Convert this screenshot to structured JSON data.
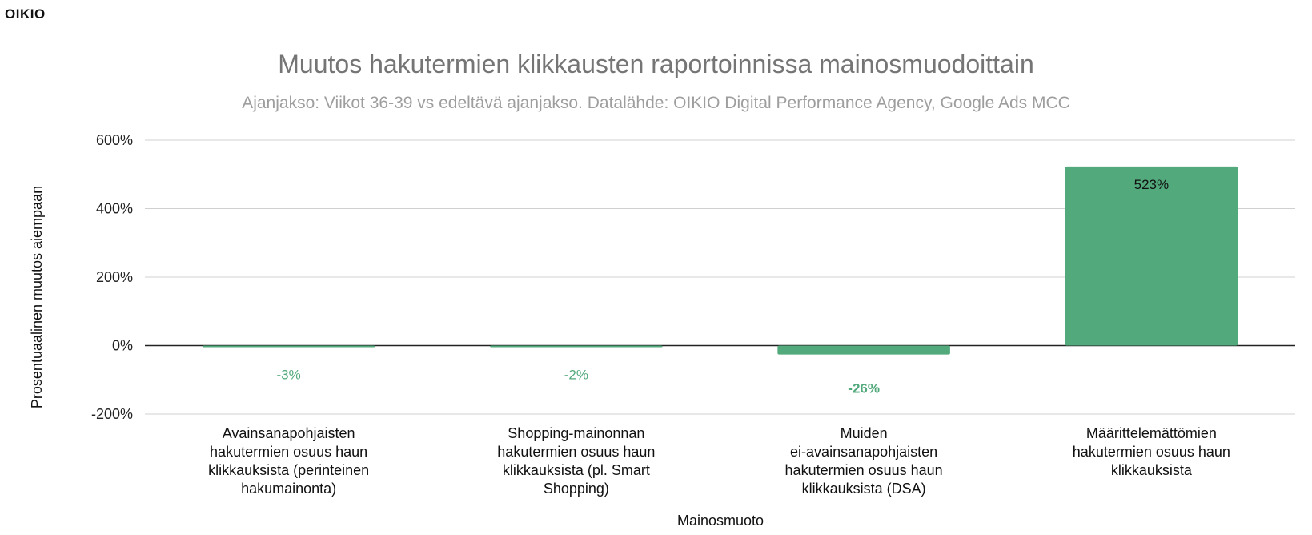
{
  "logo": "OIKIO",
  "chart_data": {
    "type": "bar",
    "title": "Muutos hakutermien klikkausten raportoinnissa mainosmuodoittain",
    "subtitle": "Ajanjakso: Viikot 36-39 vs edeltävä ajanjakso. Datalähde: OIKIO Digital Performance Agency, Google Ads MCC",
    "xlabel": "Mainosmuoto",
    "ylabel": "Prosentuaalinen muutos aiempaan",
    "ylim": [
      -200,
      600
    ],
    "yticks": [
      -200,
      0,
      200,
      400,
      600
    ],
    "ytick_labels": [
      "-200%",
      "0%",
      "200%",
      "400%",
      "600%"
    ],
    "grid": true,
    "bar_color": "#52a97c",
    "categories": [
      [
        "Avainsanapohjaisten",
        "hakutermien osuus haun",
        "klikkauksista (perinteinen",
        "hakumainonta)"
      ],
      [
        "Shopping-mainonnan",
        "hakutermien osuus haun",
        "klikkauksista (pl. Smart",
        "Shopping)"
      ],
      [
        "Muiden",
        "ei-avainsanapohjaisten",
        "hakutermien osuus haun",
        "klikkauksista (DSA)"
      ],
      [
        "Määrittelemättömien",
        "hakutermien osuus haun",
        "klikkauksista"
      ]
    ],
    "values": [
      -3,
      -2,
      -26,
      523
    ],
    "data_labels": [
      "-3%",
      "-2%",
      "-26%",
      "523%"
    ]
  }
}
